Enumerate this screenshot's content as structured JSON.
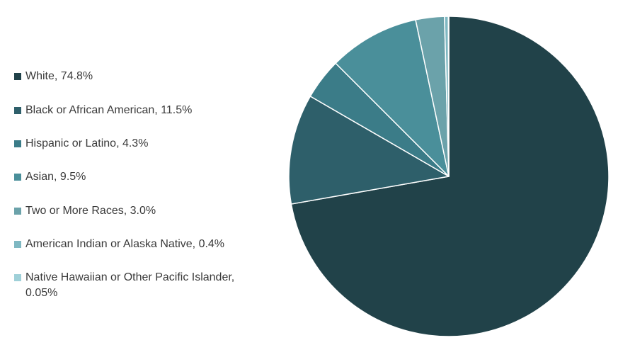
{
  "chart_data": {
    "type": "pie",
    "start_angle_deg": 0,
    "direction": "clockwise",
    "legend_position": "left",
    "slices": [
      {
        "label": "White, 74.8%",
        "category": "White",
        "value": 74.8,
        "color": "#214249"
      },
      {
        "label": "Black or African American, 11.5%",
        "category": "Black or African American",
        "value": 11.5,
        "color": "#2e5f6a"
      },
      {
        "label": "Hispanic or Latino, 4.3%",
        "category": "Hispanic or Latino",
        "value": 4.3,
        "color": "#3b7c88"
      },
      {
        "label": "Asian, 9.5%",
        "category": "Asian",
        "value": 9.5,
        "color": "#4a8f9a"
      },
      {
        "label": "Two or More Races, 3.0%",
        "category": "Two or More Races",
        "value": 3.0,
        "color": "#6ba2aa"
      },
      {
        "label": "American Indian or Alaska Native, 0.4%",
        "category": "American Indian or Alaska Native",
        "value": 0.4,
        "color": "#7fb8c2"
      },
      {
        "label": "Native Hawaiian or Other Pacific Islander, 0.05%",
        "category": "Native Hawaiian or Other Pacific Islander",
        "value": 0.05,
        "color": "#9fd0d8"
      }
    ]
  }
}
